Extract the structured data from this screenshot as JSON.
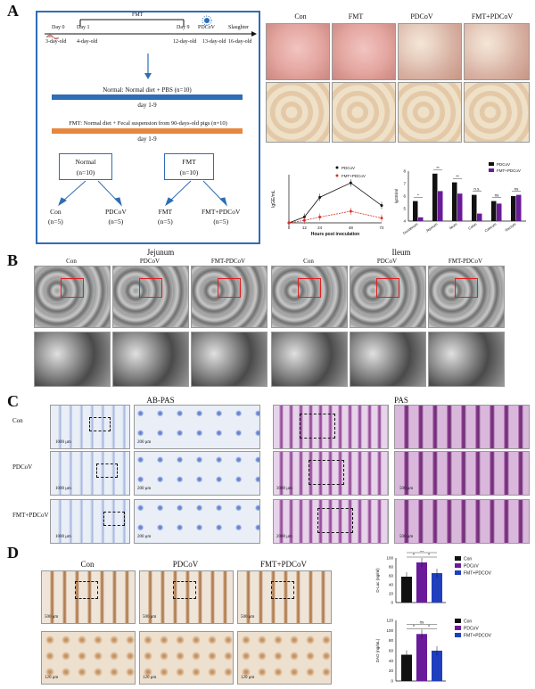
{
  "panels": {
    "a": "A",
    "b": "B",
    "c": "C",
    "d": "D"
  },
  "panelA": {
    "timeline": {
      "day0": "Day 0",
      "day1": "Day 1",
      "day9": "Day 9",
      "fmt_bracket": "FMT",
      "pdcov": "PDCoV",
      "slaughter": "Slaughter",
      "age3": "3-day-old",
      "age4": "4-day-old",
      "age12": "12-day-old",
      "age13": "13-day-old",
      "age16": "16-day-old"
    },
    "normal_bar": "Normal: Normal diet + PBS (n=10)",
    "normal_days": "day 1-9",
    "fmt_bar": "FMT: Normal diet + Fecal suspension from 90-days-old pigs (n=10)",
    "fmt_days": "day 1-9",
    "box_normal": [
      "Normal",
      "(n=10)"
    ],
    "box_fmt": [
      "FMT",
      "(n=10)"
    ],
    "leaves": [
      [
        "Con",
        "(n=5)"
      ],
      [
        "PDCoV",
        "(n=5)"
      ],
      [
        "FMT",
        "(n=5)"
      ],
      [
        "FMT+PDCoV",
        "(n=5)"
      ]
    ],
    "photo_labels": [
      "Con",
      "FMT",
      "PDCoV",
      "FMT+PDCoV"
    ]
  },
  "panelB": {
    "jejunum": "Jejunum",
    "ileum": "Ileum",
    "cols": [
      "Con",
      "PDCoV",
      "FMT-PDCoV",
      "Con",
      "PDCoV",
      "FMT-PDCoV"
    ]
  },
  "panelC": {
    "abpas": "AB-PAS",
    "pas": "PAS",
    "rows": [
      "Con",
      "PDCoV",
      "FMT+PDCoV"
    ],
    "scale_1000": "1000 μm",
    "scale_200": "200 μm",
    "scale_500": "500 μm",
    "scale_3000": "3000 μm",
    "scale_2000": "2000 μm"
  },
  "panelD": {
    "cols": [
      "Con",
      "PDCoV",
      "FMT+PDCoV"
    ],
    "scale_500": "500 μm",
    "scale_120": "120 μm"
  },
  "colors": {
    "blue": "#2f6db5",
    "orange": "#e6873f",
    "red": "#d9302a",
    "black": "#111111",
    "purple": "#6a1b9a",
    "navy": "#1f3fbf"
  },
  "chart_data": [
    {
      "type": "line",
      "xlabel": "Hours post inoculation",
      "ylabel": "lgGE/mL",
      "x": [
        0,
        12,
        24,
        48,
        72
      ],
      "series": [
        {
          "name": "PDCoV",
          "values": [
            0,
            1.2,
            5.3,
            8.3,
            3.6
          ]
        },
        {
          "name": "FMT+PDCoV",
          "values": [
            0,
            0.5,
            1.2,
            2.4,
            1.0
          ]
        }
      ],
      "ylim": [
        0,
        10
      ]
    },
    {
      "type": "bar",
      "ylabel": "lgGE/ml",
      "categories": [
        "Duodenum",
        "Jejunum",
        "Ileum",
        "Colon",
        "Caecum",
        "Rectum"
      ],
      "series": [
        {
          "name": "PDCoV",
          "values": [
            5.6,
            7.8,
            7.1,
            6.1,
            5.6,
            6.0
          ]
        },
        {
          "name": "FMT+PDCoV",
          "values": [
            4.3,
            6.4,
            6.2,
            4.6,
            5.4,
            6.1
          ]
        }
      ],
      "significance": [
        "*",
        "**",
        "**",
        "n.s.",
        "ns",
        "ns"
      ],
      "ylim": [
        4,
        8
      ]
    },
    {
      "type": "bar",
      "ylabel": "D-Lac (ng/ml)",
      "categories": [
        "Con",
        "PDCoV",
        "FMT+PDCOV"
      ],
      "values": [
        58,
        90,
        66
      ],
      "significance": [
        "ns",
        "*",
        "*"
      ],
      "ylim": [
        0,
        100
      ],
      "yticks": [
        0,
        20,
        40,
        60,
        80,
        100
      ]
    },
    {
      "type": "bar",
      "ylabel": "DAO (ng/mL)",
      "categories": [
        "Con",
        "PDCoV",
        "FMT+PDCOV"
      ],
      "values": [
        52,
        93,
        60
      ],
      "significance": [
        "ns",
        "*",
        "*"
      ],
      "ylim": [
        0,
        120
      ],
      "yticks": [
        0,
        20,
        40,
        60,
        80,
        100,
        120
      ]
    }
  ]
}
